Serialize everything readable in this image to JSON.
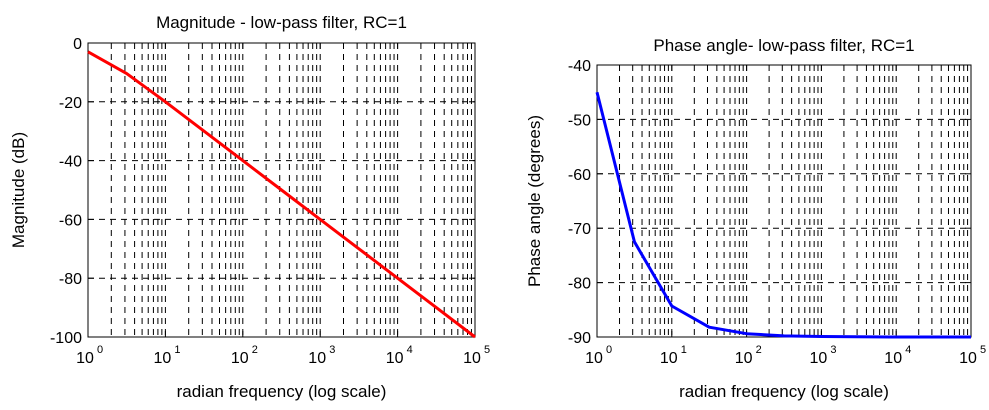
{
  "colors": {
    "magnitude": "#ff0000",
    "phase": "#0000ff",
    "grid": "#000000",
    "background": "#ffffff"
  },
  "chart_data": [
    {
      "type": "line",
      "title": "Magnitude - low-pass filter, RC=1",
      "xlabel": "radian frequency (log scale)",
      "ylabel": "Magnitude (dB)",
      "xscale": "log",
      "xlim": [
        1,
        100000
      ],
      "ylim": [
        -100,
        0
      ],
      "grid": true,
      "x_ticks": [
        {
          "base": "10",
          "exp": "0"
        },
        {
          "base": "10",
          "exp": "1"
        },
        {
          "base": "10",
          "exp": "2"
        },
        {
          "base": "10",
          "exp": "3"
        },
        {
          "base": "10",
          "exp": "4"
        },
        {
          "base": "10",
          "exp": "5"
        }
      ],
      "y_ticks": [
        "0",
        "-20",
        "-40",
        "-60",
        "-80",
        "-100"
      ],
      "y_tick_values": [
        0,
        -20,
        -40,
        -60,
        -80,
        -100
      ],
      "series": [
        {
          "color": "#ff0000",
          "x": [
            1,
            3.16,
            10,
            31.6,
            100,
            316,
            1000,
            3162,
            10000,
            31623,
            100000
          ],
          "y": [
            -3,
            -10.4,
            -20,
            -30,
            -40,
            -50,
            -60,
            -70,
            -80,
            -90,
            -100
          ]
        }
      ]
    },
    {
      "type": "line",
      "title": "Phase angle- low-pass filter, RC=1",
      "xlabel": "radian frequency (log scale)",
      "ylabel": "Phase angle (degrees)",
      "xscale": "log",
      "xlim": [
        1,
        100000
      ],
      "ylim": [
        -90,
        -40
      ],
      "grid": true,
      "x_ticks": [
        {
          "base": "10",
          "exp": "0"
        },
        {
          "base": "10",
          "exp": "1"
        },
        {
          "base": "10",
          "exp": "2"
        },
        {
          "base": "10",
          "exp": "3"
        },
        {
          "base": "10",
          "exp": "4"
        },
        {
          "base": "10",
          "exp": "5"
        }
      ],
      "y_ticks": [
        "-40",
        "-50",
        "-60",
        "-70",
        "-80",
        "-90"
      ],
      "y_tick_values": [
        -40,
        -50,
        -60,
        -70,
        -80,
        -90
      ],
      "series": [
        {
          "color": "#0000ff",
          "x": [
            1,
            3.16,
            10,
            31.6,
            100,
            316,
            1000,
            10000,
            100000
          ],
          "y": [
            -45,
            -72.5,
            -84.3,
            -88.2,
            -89.4,
            -89.8,
            -89.9,
            -90,
            -90
          ]
        }
      ]
    }
  ]
}
